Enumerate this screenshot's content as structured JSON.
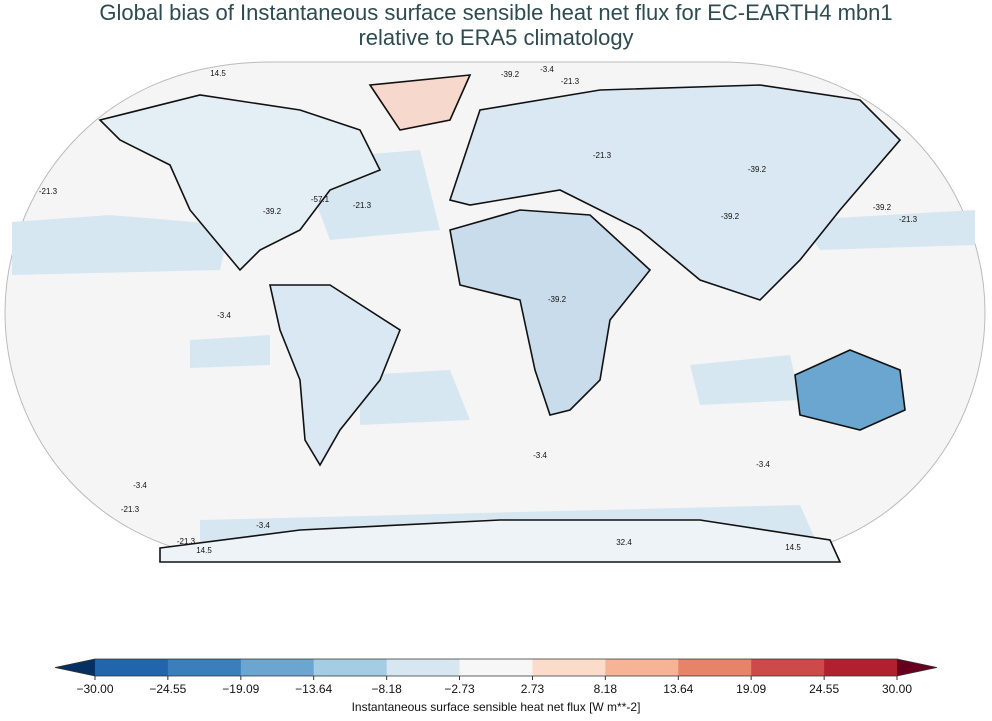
{
  "header": {
    "title_lines": [
      "Global bias of Instantaneous surface sensible heat net flux for EC-EARTH4 mbn1",
      "relative to ERA5 climatology"
    ]
  },
  "map": {
    "contour_labels": [
      "-3.4",
      "-39.2",
      "-21.3",
      "14.5",
      "-21.3",
      "-39.2",
      "-57.1",
      "-21.3",
      "-21.3",
      "-39.2",
      "-39.2",
      "-39.2",
      "-21.3",
      "-3.4",
      "-39.2",
      "-3.4",
      "-3.4",
      "-3.4",
      "-21.3",
      "-3.4",
      "-21.3",
      "14.5",
      "32.4",
      "14.5"
    ]
  },
  "colorbar": {
    "label": "Instantaneous surface sensible heat net flux [W m**-2]",
    "ticks": [
      {
        "value": -30,
        "label": "−30.00"
      },
      {
        "value": -24.55,
        "label": "−24.55"
      },
      {
        "value": -19.09,
        "label": "−19.09"
      },
      {
        "value": -13.64,
        "label": "−13.64"
      },
      {
        "value": -8.18,
        "label": "−8.18"
      },
      {
        "value": -2.73,
        "label": "−2.73"
      },
      {
        "value": 2.73,
        "label": "2.73"
      },
      {
        "value": 8.18,
        "label": "8.18"
      },
      {
        "value": 13.64,
        "label": "13.64"
      },
      {
        "value": 19.09,
        "label": "19.09"
      },
      {
        "value": 24.55,
        "label": "24.55"
      },
      {
        "value": 30,
        "label": "30.00"
      }
    ],
    "colors": [
      "#2166ac",
      "#3a7ebc",
      "#6aa6d0",
      "#a4cce3",
      "#d7e7f1",
      "#f7f7f7",
      "#fbdccb",
      "#f6b396",
      "#e58468",
      "#cc4a4a",
      "#b0202f"
    ],
    "under_color": "#053061",
    "over_color": "#67001f"
  }
}
